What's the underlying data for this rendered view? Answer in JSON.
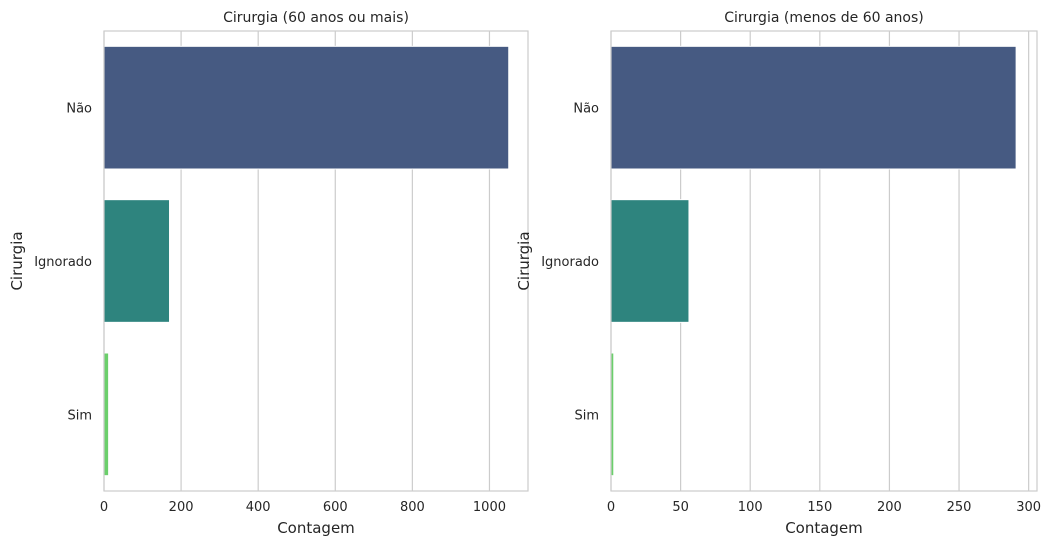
{
  "chart_data": [
    {
      "type": "bar",
      "orientation": "horizontal",
      "title": "Cirurgia (60 anos ou mais)",
      "xlabel": "Contagem",
      "ylabel": "Cirurgia",
      "categories": [
        "Não",
        "Ignorado",
        "Sim"
      ],
      "values": [
        1050,
        170,
        12
      ],
      "xlim": [
        0,
        1100
      ],
      "xticks": [
        0,
        200,
        400,
        600,
        800,
        1000
      ],
      "xtick_labels": [
        "0",
        "200",
        "400",
        "600",
        "800",
        "1000"
      ],
      "grid": "vertical",
      "colors": [
        "#465a82",
        "#2e847e",
        "#6bcf6b"
      ]
    },
    {
      "type": "bar",
      "orientation": "horizontal",
      "title": "Cirurgia (menos de 60 anos)",
      "xlabel": "Contagem",
      "ylabel": "Cirurgia",
      "categories": [
        "Não",
        "Ignorado",
        "Sim"
      ],
      "values": [
        291,
        56,
        2
      ],
      "xlim": [
        0,
        306
      ],
      "xticks": [
        0,
        50,
        100,
        150,
        200,
        250,
        300
      ],
      "xtick_labels": [
        "0",
        "50",
        "100",
        "150",
        "200",
        "250",
        "300"
      ],
      "grid": "vertical",
      "colors": [
        "#465a82",
        "#2e847e",
        "#6bcf6b"
      ]
    }
  ]
}
